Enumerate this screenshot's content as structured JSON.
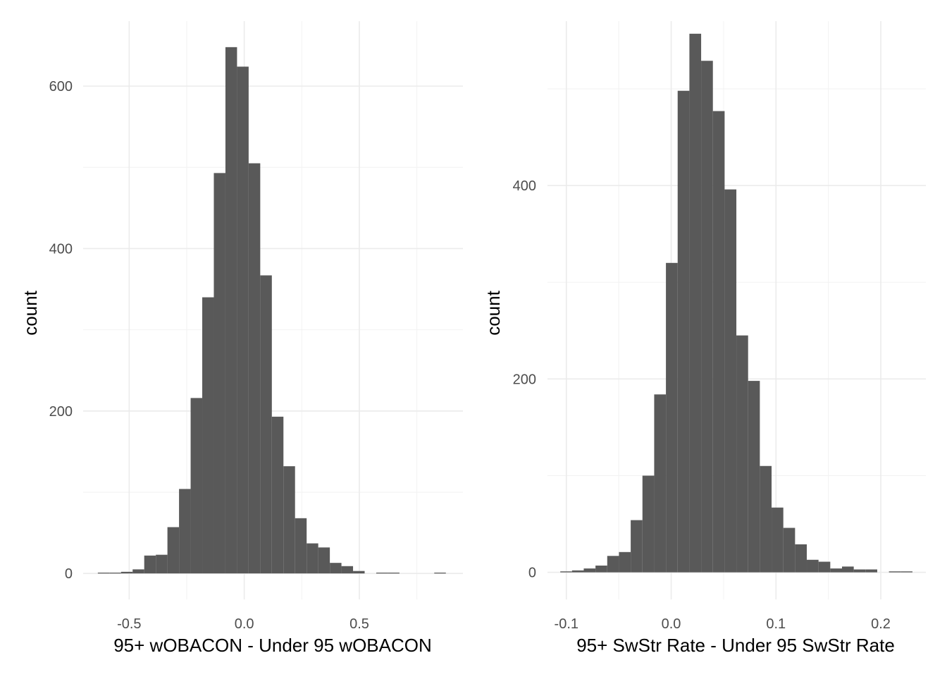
{
  "chart_data": [
    {
      "type": "histogram",
      "xlabel": "95+ wOBACON - Under 95 wOBACON",
      "ylabel": "count",
      "xlim": [
        -0.7,
        0.95
      ],
      "ylim": [
        -32,
        680
      ],
      "x_ticks": [
        -0.5,
        0.0,
        0.5
      ],
      "x_tick_labels": [
        "-0.5",
        "0.0",
        "0.5"
      ],
      "y_ticks": [
        0,
        200,
        400,
        600
      ],
      "y_tick_labels": [
        "0",
        "200",
        "400",
        "600"
      ],
      "grid": true,
      "bar_color": "#595959",
      "bins": [
        {
          "x0": -0.6362,
          "x1": -0.5858,
          "count": 1
        },
        {
          "x0": -0.5858,
          "x1": -0.5354,
          "count": 1
        },
        {
          "x0": -0.5354,
          "x1": -0.485,
          "count": 2
        },
        {
          "x0": -0.485,
          "x1": -0.4346,
          "count": 5
        },
        {
          "x0": -0.4346,
          "x1": -0.3842,
          "count": 22
        },
        {
          "x0": -0.3842,
          "x1": -0.3338,
          "count": 23
        },
        {
          "x0": -0.3338,
          "x1": -0.2834,
          "count": 57
        },
        {
          "x0": -0.2834,
          "x1": -0.233,
          "count": 104
        },
        {
          "x0": -0.233,
          "x1": -0.1826,
          "count": 216
        },
        {
          "x0": -0.1826,
          "x1": -0.1322,
          "count": 340
        },
        {
          "x0": -0.1322,
          "x1": -0.0818,
          "count": 493
        },
        {
          "x0": -0.0818,
          "x1": -0.0314,
          "count": 648
        },
        {
          "x0": -0.0314,
          "x1": 0.019,
          "count": 624
        },
        {
          "x0": 0.019,
          "x1": 0.0694,
          "count": 505
        },
        {
          "x0": 0.0694,
          "x1": 0.1198,
          "count": 367
        },
        {
          "x0": 0.1198,
          "x1": 0.1702,
          "count": 193
        },
        {
          "x0": 0.1702,
          "x1": 0.2206,
          "count": 132
        },
        {
          "x0": 0.2206,
          "x1": 0.271,
          "count": 68
        },
        {
          "x0": 0.271,
          "x1": 0.3214,
          "count": 37
        },
        {
          "x0": 0.3214,
          "x1": 0.3718,
          "count": 32
        },
        {
          "x0": 0.3718,
          "x1": 0.4222,
          "count": 13
        },
        {
          "x0": 0.4222,
          "x1": 0.4726,
          "count": 9
        },
        {
          "x0": 0.4726,
          "x1": 0.523,
          "count": 3
        },
        {
          "x0": 0.523,
          "x1": 0.5734,
          "count": 0
        },
        {
          "x0": 0.5734,
          "x1": 0.6238,
          "count": 1
        },
        {
          "x0": 0.6238,
          "x1": 0.6742,
          "count": 1
        },
        {
          "x0": 0.6742,
          "x1": 0.7246,
          "count": 0
        },
        {
          "x0": 0.7246,
          "x1": 0.775,
          "count": 0
        },
        {
          "x0": 0.775,
          "x1": 0.8254,
          "count": 0
        },
        {
          "x0": 0.8254,
          "x1": 0.8758,
          "count": 1
        }
      ]
    },
    {
      "type": "histogram",
      "xlabel": "95+ SwStr Rate - Under 95 SwStr Rate",
      "ylabel": "count",
      "xlim": [
        -0.118,
        0.243
      ],
      "ylim": [
        -28,
        570
      ],
      "x_ticks": [
        -0.1,
        0.0,
        0.1,
        0.2
      ],
      "x_tick_labels": [
        "-0.1",
        "0.0",
        "0.1",
        "0.2"
      ],
      "y_ticks": [
        0,
        200,
        400
      ],
      "y_tick_labels": [
        "0",
        "200",
        "400"
      ],
      "grid": true,
      "bar_color": "#595959",
      "bins": [
        {
          "x0": -0.1058,
          "x1": -0.0946,
          "count": 1
        },
        {
          "x0": -0.0946,
          "x1": -0.0834,
          "count": 2
        },
        {
          "x0": -0.0834,
          "x1": -0.0722,
          "count": 4
        },
        {
          "x0": -0.0722,
          "x1": -0.061,
          "count": 7
        },
        {
          "x0": -0.061,
          "x1": -0.0498,
          "count": 17
        },
        {
          "x0": -0.0498,
          "x1": -0.0386,
          "count": 21
        },
        {
          "x0": -0.0386,
          "x1": -0.0274,
          "count": 54
        },
        {
          "x0": -0.0274,
          "x1": -0.0162,
          "count": 100
        },
        {
          "x0": -0.0162,
          "x1": -0.005,
          "count": 184
        },
        {
          "x0": -0.005,
          "x1": 0.0062,
          "count": 320
        },
        {
          "x0": 0.0062,
          "x1": 0.0174,
          "count": 498
        },
        {
          "x0": 0.0174,
          "x1": 0.0286,
          "count": 557
        },
        {
          "x0": 0.0286,
          "x1": 0.0398,
          "count": 529
        },
        {
          "x0": 0.0398,
          "x1": 0.051,
          "count": 477
        },
        {
          "x0": 0.051,
          "x1": 0.0622,
          "count": 396
        },
        {
          "x0": 0.0622,
          "x1": 0.0734,
          "count": 245
        },
        {
          "x0": 0.0734,
          "x1": 0.0846,
          "count": 198
        },
        {
          "x0": 0.0846,
          "x1": 0.0958,
          "count": 110
        },
        {
          "x0": 0.0958,
          "x1": 0.107,
          "count": 67
        },
        {
          "x0": 0.107,
          "x1": 0.1182,
          "count": 46
        },
        {
          "x0": 0.1182,
          "x1": 0.1294,
          "count": 29
        },
        {
          "x0": 0.1294,
          "x1": 0.1406,
          "count": 13
        },
        {
          "x0": 0.1406,
          "x1": 0.1518,
          "count": 11
        },
        {
          "x0": 0.1518,
          "x1": 0.163,
          "count": 4
        },
        {
          "x0": 0.163,
          "x1": 0.1742,
          "count": 6
        },
        {
          "x0": 0.1742,
          "x1": 0.1854,
          "count": 3
        },
        {
          "x0": 0.1854,
          "x1": 0.1966,
          "count": 3
        },
        {
          "x0": 0.1966,
          "x1": 0.2078,
          "count": 0
        },
        {
          "x0": 0.2078,
          "x1": 0.219,
          "count": 1
        },
        {
          "x0": 0.219,
          "x1": 0.2302,
          "count": 1
        }
      ]
    }
  ]
}
